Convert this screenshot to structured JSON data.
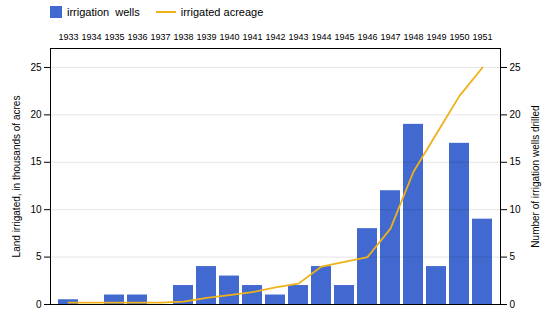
{
  "chart_data": {
    "type": "bar",
    "categories": [
      1933,
      1934,
      1935,
      1936,
      1937,
      1938,
      1939,
      1940,
      1941,
      1942,
      1943,
      1944,
      1945,
      1946,
      1947,
      1948,
      1949,
      1950,
      1951
    ],
    "series": [
      {
        "name": "irrigation  wells",
        "type": "bar",
        "axis": "y2",
        "values": [
          0.5,
          0,
          1,
          1,
          0,
          2,
          4,
          3,
          2,
          1,
          2,
          4,
          2,
          8,
          12,
          19,
          4,
          17,
          9
        ]
      },
      {
        "name": "irrigated acreage",
        "type": "line",
        "values": [
          0.2,
          0.2,
          0.2,
          0.2,
          0.2,
          0.3,
          0.7,
          1.0,
          1.3,
          1.8,
          2.2,
          4.0,
          4.5,
          5.0,
          8.0,
          14.0,
          18.0,
          22.0,
          25.0
        ]
      }
    ],
    "ylabel": "Land irrigated, in thousands of acres",
    "y2label": "Number of irrigation wells drilled",
    "ylim": [
      0,
      27
    ],
    "yticks": [
      0,
      5,
      10,
      15,
      20,
      25
    ],
    "y2lim": [
      0,
      27
    ],
    "y2ticks": [
      0,
      5,
      10,
      15,
      20,
      25
    ],
    "grid": true,
    "legend": "upper left"
  }
}
